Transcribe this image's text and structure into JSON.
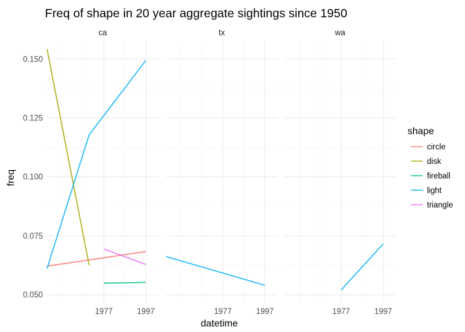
{
  "chart_data": {
    "type": "line",
    "title": "Freq of shape in 20 year aggregate sightings since 1950",
    "xlabel": "datetime",
    "ylabel": "freq",
    "x_range": [
      1950,
      2003
    ],
    "ylim": [
      0.0465,
      0.158
    ],
    "x_major_ticks": [
      1977,
      1997
    ],
    "x_minor_ticks": [
      1957,
      1967,
      1987
    ],
    "y_major_ticks": [
      0.05,
      0.075,
      0.1,
      0.125,
      0.15
    ],
    "y_tick_labels": [
      "0.050",
      "0.075",
      "0.100",
      "0.125",
      "0.150"
    ],
    "grid": true,
    "legend_title": "shape",
    "legend_position": "right",
    "colors": {
      "circle": "#F8766D",
      "disk": "#A3A500",
      "fireball": "#00BF7D",
      "light": "#00B0F6",
      "triangle": "#E76BF3"
    },
    "legend_order": [
      "circle",
      "disk",
      "fireball",
      "light",
      "triangle"
    ],
    "facets": [
      {
        "name": "ca",
        "series": [
          {
            "name": "circle",
            "x": [
              1950,
              1997
            ],
            "y": [
              0.0621,
              0.0683
            ]
          },
          {
            "name": "disk",
            "x": [
              1950,
              1970
            ],
            "y": [
              0.1542,
              0.0625
            ]
          },
          {
            "name": "fireball",
            "x": [
              1977,
              1997
            ],
            "y": [
              0.0549,
              0.0552
            ]
          },
          {
            "name": "light",
            "x": [
              1950,
              1970,
              1997
            ],
            "y": [
              0.0611,
              0.1178,
              0.1494
            ]
          },
          {
            "name": "triangle",
            "x": [
              1977,
              1997
            ],
            "y": [
              0.0694,
              0.0628
            ]
          }
        ]
      },
      {
        "name": "tx",
        "series": [
          {
            "name": "light",
            "x": [
              1950,
              1997
            ],
            "y": [
              0.0662,
              0.054
            ]
          }
        ]
      },
      {
        "name": "wa",
        "series": [
          {
            "name": "light",
            "x": [
              1977,
              1997
            ],
            "y": [
              0.052,
              0.0716
            ]
          }
        ]
      }
    ]
  }
}
